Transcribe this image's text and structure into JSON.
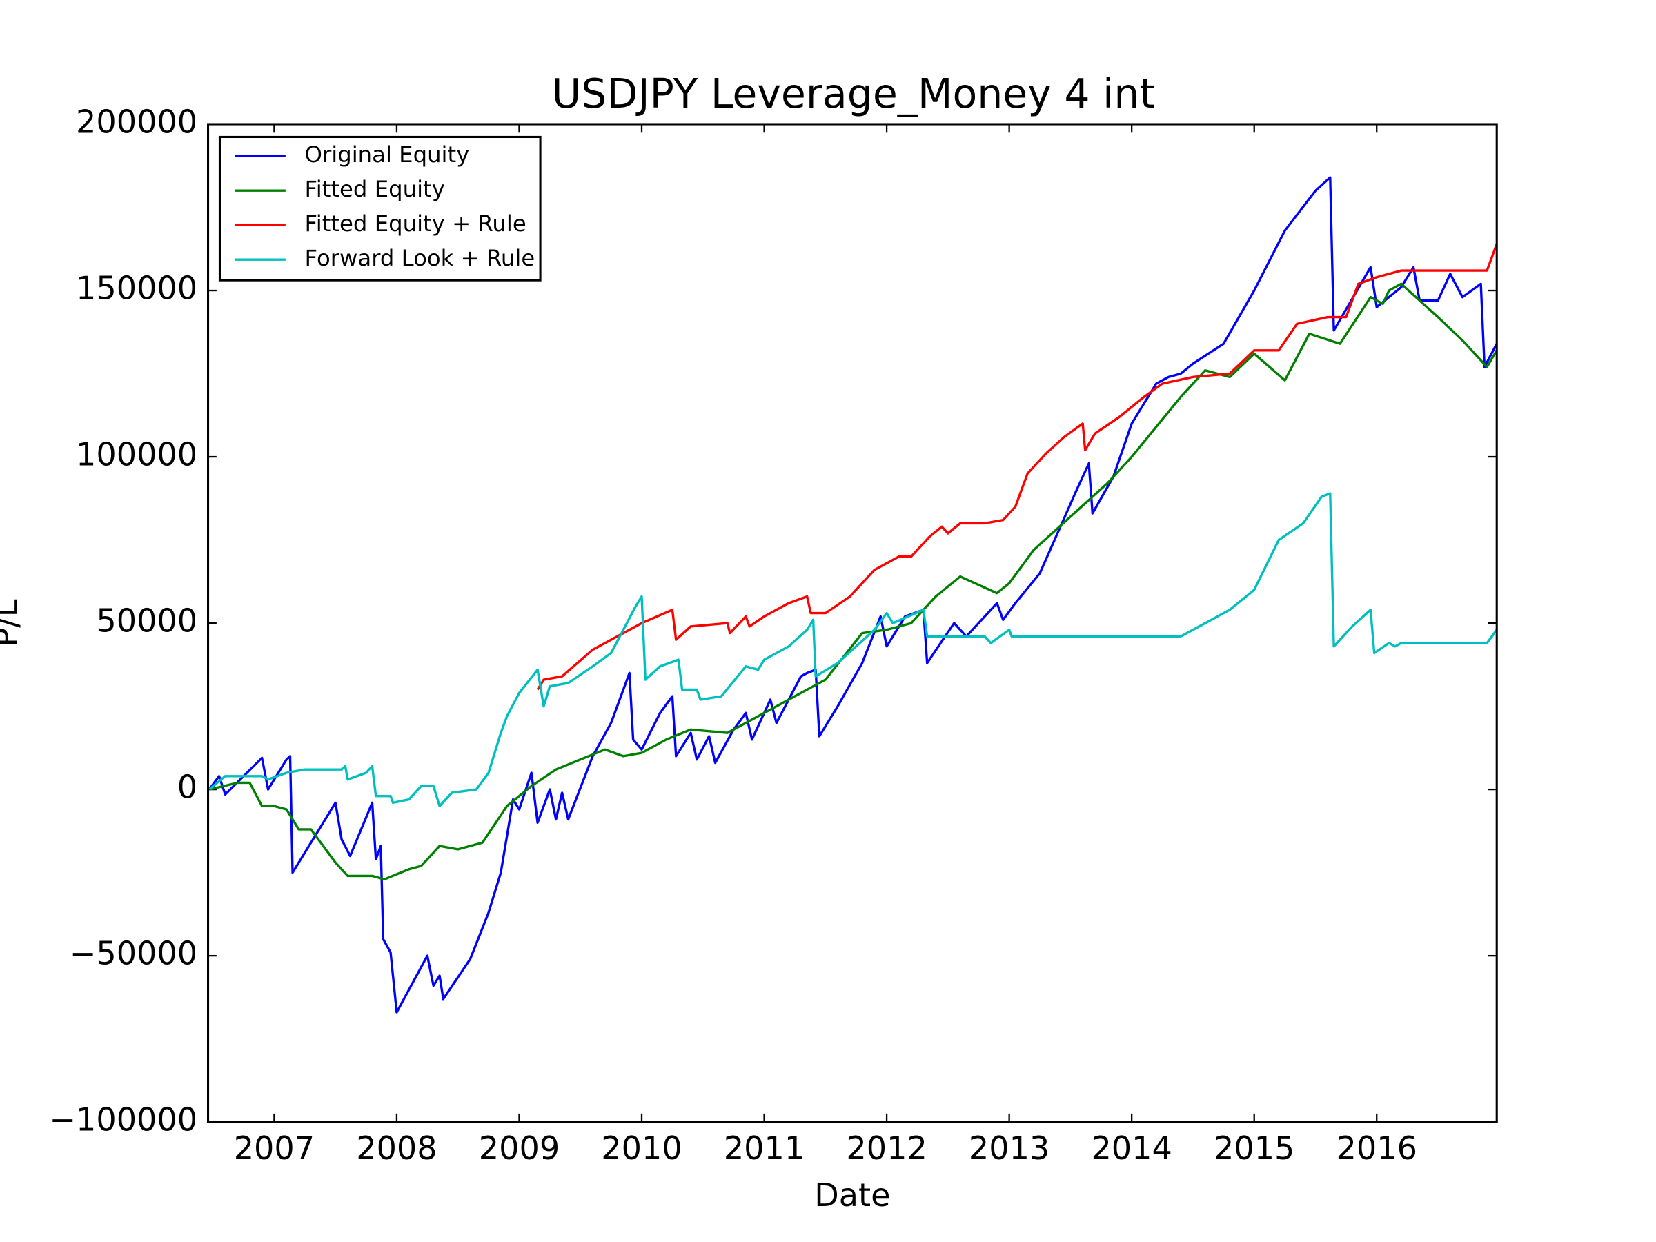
{
  "chart_data": {
    "type": "line",
    "title": "USDJPY Leverage_Money 4 int",
    "x_label": "Date",
    "y_label": "P/L",
    "xlim": [
      2006.46,
      2016.98
    ],
    "xticks": [
      2007,
      2008,
      2009,
      2010,
      2011,
      2012,
      2013,
      2014,
      2015,
      2016
    ],
    "ylim": [
      -100000,
      200000
    ],
    "yticks": [
      {
        "value": -100000,
        "label": "−100000"
      },
      {
        "value": -50000,
        "label": "−50000"
      },
      0,
      50000,
      100000,
      150000,
      200000
    ],
    "grid": false,
    "legend": "upper left",
    "series": [
      {
        "name": "Original Equity",
        "color": "#0000ff",
        "x": [
          2006.47,
          2006.55,
          2006.6,
          2006.9,
          2006.95,
          2007.1,
          2007.13,
          2007.15,
          2007.5,
          2007.55,
          2007.62,
          2007.8,
          2007.83,
          2007.87,
          2007.89,
          2007.95,
          2008.0,
          2008.25,
          2008.3,
          2008.35,
          2008.38,
          2008.6,
          2008.75,
          2008.85,
          2008.95,
          2009.0,
          2009.1,
          2009.15,
          2009.25,
          2009.3,
          2009.35,
          2009.4,
          2009.6,
          2009.75,
          2009.9,
          2009.93,
          2010.0,
          2010.15,
          2010.25,
          2010.28,
          2010.4,
          2010.45,
          2010.55,
          2010.6,
          2010.75,
          2010.85,
          2010.9,
          2011.05,
          2011.1,
          2011.3,
          2011.35,
          2011.42,
          2011.45,
          2011.6,
          2011.8,
          2011.95,
          2012.0,
          2012.15,
          2012.3,
          2012.33,
          2012.55,
          2012.65,
          2012.9,
          2012.95,
          2013.05,
          2013.25,
          2013.55,
          2013.65,
          2013.68,
          2013.85,
          2014.0,
          2014.2,
          2014.3,
          2014.4,
          2014.5,
          2014.75,
          2015.0,
          2015.25,
          2015.5,
          2015.62,
          2015.65,
          2015.95,
          2016.0,
          2016.2,
          2016.3,
          2016.35,
          2016.5,
          2016.6,
          2016.7,
          2016.85,
          2016.88,
          2016.98
        ],
        "values": [
          0,
          4000,
          -1500,
          9500,
          0,
          9000,
          10000,
          -25000,
          -4000,
          -15000,
          -20000,
          -4000,
          -21000,
          -17000,
          -45000,
          -49000,
          -67000,
          -50000,
          -59000,
          -56000,
          -63000,
          -51000,
          -37000,
          -25000,
          -3000,
          -6000,
          5000,
          -10000,
          0,
          -9000,
          -1000,
          -9000,
          10000,
          20000,
          35000,
          15000,
          12000,
          23000,
          28000,
          10000,
          17000,
          9000,
          16000,
          8000,
          18000,
          23000,
          15000,
          27000,
          20000,
          34000,
          35000,
          36000,
          16000,
          25000,
          38000,
          52000,
          43000,
          52000,
          54000,
          38000,
          50000,
          46000,
          56000,
          51000,
          56000,
          65000,
          90000,
          98000,
          83000,
          94000,
          110000,
          122000,
          124000,
          125000,
          128000,
          134000,
          150000,
          168000,
          180000,
          184000,
          138000,
          157000,
          145000,
          151000,
          157000,
          147000,
          147000,
          155000,
          148000,
          152000,
          127000,
          134000
        ]
      },
      {
        "name": "Fitted Equity",
        "color": "#008000",
        "x": [
          2006.47,
          2006.7,
          2006.8,
          2006.9,
          2007.0,
          2007.1,
          2007.2,
          2007.3,
          2007.5,
          2007.6,
          2007.8,
          2007.9,
          2008.1,
          2008.2,
          2008.35,
          2008.5,
          2008.7,
          2008.9,
          2009.0,
          2009.1,
          2009.3,
          2009.5,
          2009.7,
          2009.85,
          2010.0,
          2010.2,
          2010.4,
          2010.7,
          2011.0,
          2011.5,
          2011.8,
          2012.0,
          2012.2,
          2012.4,
          2012.6,
          2012.9,
          2013.0,
          2013.2,
          2013.5,
          2013.8,
          2014.0,
          2014.4,
          2014.6,
          2014.8,
          2015.0,
          2015.25,
          2015.35,
          2015.45,
          2015.7,
          2015.95,
          2016.05,
          2016.1,
          2016.2,
          2016.5,
          2016.7,
          2016.9,
          2016.98
        ],
        "values": [
          0,
          2000,
          2000,
          -5000,
          -5000,
          -6000,
          -12000,
          -12000,
          -22000,
          -26000,
          -26000,
          -27000,
          -24000,
          -23000,
          -17000,
          -18000,
          -16000,
          -5000,
          -2000,
          1000,
          6000,
          9000,
          12000,
          10000,
          11000,
          15000,
          18000,
          17000,
          23000,
          33000,
          47000,
          48000,
          50000,
          58000,
          64000,
          59000,
          62000,
          72000,
          82000,
          92000,
          100000,
          118000,
          126000,
          124000,
          131000,
          123000,
          130000,
          137000,
          134000,
          148000,
          146000,
          150000,
          152000,
          142000,
          135000,
          127000,
          132000
        ]
      },
      {
        "name": "Fitted Equity + Rule",
        "color": "#ff0000",
        "x": [
          2009.15,
          2009.2,
          2009.35,
          2009.6,
          2009.8,
          2010.0,
          2010.25,
          2010.28,
          2010.4,
          2010.7,
          2010.72,
          2010.85,
          2010.88,
          2011.0,
          2011.2,
          2011.35,
          2011.38,
          2011.5,
          2011.7,
          2011.9,
          2012.1,
          2012.2,
          2012.35,
          2012.45,
          2012.5,
          2012.6,
          2012.8,
          2012.95,
          2013.05,
          2013.15,
          2013.3,
          2013.45,
          2013.6,
          2013.62,
          2013.7,
          2013.9,
          2014.1,
          2014.25,
          2014.5,
          2014.8,
          2015.0,
          2015.2,
          2015.35,
          2015.6,
          2015.75,
          2015.85,
          2016.0,
          2016.2,
          2016.9,
          2016.98
        ],
        "values": [
          30000,
          33000,
          34000,
          42000,
          46000,
          50000,
          54000,
          45000,
          49000,
          50000,
          47000,
          52000,
          49000,
          52000,
          56000,
          58000,
          53000,
          53000,
          58000,
          66000,
          70000,
          70000,
          76000,
          79000,
          77000,
          80000,
          80000,
          81000,
          85000,
          95000,
          101000,
          106000,
          110000,
          102000,
          107000,
          112000,
          118000,
          122000,
          124000,
          125000,
          132000,
          132000,
          140000,
          142000,
          142000,
          152000,
          154000,
          156000,
          156000,
          164000
        ]
      },
      {
        "name": "Forward Look + Rule",
        "color": "#00bfbf",
        "x": [
          2006.47,
          2006.6,
          2006.9,
          2006.95,
          2007.1,
          2007.25,
          2007.55,
          2007.58,
          2007.6,
          2007.75,
          2007.8,
          2007.83,
          2007.95,
          2007.97,
          2008.1,
          2008.2,
          2008.3,
          2008.35,
          2008.45,
          2008.65,
          2008.75,
          2008.85,
          2008.9,
          2009.0,
          2009.15,
          2009.2,
          2009.25,
          2009.4,
          2009.6,
          2009.75,
          2009.95,
          2010.0,
          2010.03,
          2010.15,
          2010.3,
          2010.33,
          2010.45,
          2010.48,
          2010.65,
          2010.85,
          2010.95,
          2011.0,
          2011.2,
          2011.35,
          2011.4,
          2011.42,
          2011.6,
          2011.9,
          2012.0,
          2012.05,
          2012.3,
          2012.33,
          2012.8,
          2012.85,
          2013.0,
          2013.02,
          2014.4,
          2014.6,
          2014.8,
          2015.0,
          2015.2,
          2015.4,
          2015.55,
          2015.62,
          2015.65,
          2015.8,
          2015.95,
          2015.98,
          2016.1,
          2016.15,
          2016.2,
          2016.9,
          2016.98
        ],
        "values": [
          0,
          4000,
          4000,
          3000,
          5000,
          6000,
          6000,
          7000,
          3000,
          5000,
          7000,
          -2000,
          -2000,
          -4000,
          -3000,
          1000,
          1000,
          -5000,
          -1000,
          0,
          5000,
          17000,
          22000,
          29000,
          36000,
          25000,
          31000,
          32000,
          37000,
          41000,
          55000,
          58000,
          33000,
          37000,
          39000,
          30000,
          30000,
          27000,
          28000,
          37000,
          36000,
          39000,
          43000,
          48000,
          51000,
          34000,
          38000,
          48000,
          53000,
          50000,
          54000,
          46000,
          46000,
          44000,
          48000,
          46000,
          46000,
          50000,
          54000,
          60000,
          75000,
          80000,
          88000,
          89000,
          43000,
          49000,
          54000,
          41000,
          44000,
          43000,
          44000,
          44000,
          48000
        ]
      }
    ]
  }
}
